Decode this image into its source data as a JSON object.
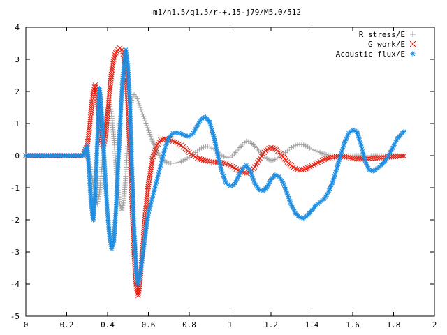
{
  "chart_data": {
    "type": "scatter",
    "title": "m1/n1.5/q1.5/r-+.15-j79/M5.0/512",
    "xlabel": "",
    "ylabel": "",
    "xlim": [
      0,
      2
    ],
    "ylim": [
      -5,
      4
    ],
    "xticks": [
      "0",
      "0.2",
      "0.4",
      "0.6",
      "0.8",
      "1",
      "1.2",
      "1.4",
      "1.6",
      "1.8",
      "2"
    ],
    "yticks": [
      "4",
      "3",
      "2",
      "1",
      "0",
      "-1",
      "-2",
      "-3",
      "-4",
      "-5"
    ],
    "legend_position": "top-right",
    "grid": false,
    "series": [
      {
        "name": "R stress/E",
        "marker": "plus",
        "color": "#a0a0a0",
        "x": [
          0.0,
          0.1,
          0.2,
          0.28,
          0.3,
          0.31,
          0.32,
          0.33,
          0.34,
          0.35,
          0.36,
          0.37,
          0.38,
          0.39,
          0.4,
          0.41,
          0.42,
          0.43,
          0.44,
          0.45,
          0.46,
          0.47,
          0.48,
          0.49,
          0.5,
          0.51,
          0.52,
          0.53,
          0.54,
          0.55,
          0.56,
          0.58,
          0.6,
          0.62,
          0.64,
          0.66,
          0.68,
          0.7,
          0.72,
          0.74,
          0.76,
          0.78,
          0.8,
          0.82,
          0.84,
          0.86,
          0.88,
          0.9,
          0.92,
          0.94,
          0.96,
          0.98,
          1.0,
          1.02,
          1.04,
          1.06,
          1.08,
          1.1,
          1.12,
          1.14,
          1.16,
          1.18,
          1.2,
          1.22,
          1.24,
          1.26,
          1.28,
          1.3,
          1.32,
          1.34,
          1.36,
          1.38,
          1.4,
          1.42,
          1.44,
          1.46,
          1.48,
          1.5,
          1.52,
          1.54,
          1.56,
          1.58,
          1.6,
          1.62,
          1.64,
          1.66,
          1.68,
          1.7,
          1.72,
          1.74,
          1.76,
          1.78,
          1.8,
          1.82,
          1.85
        ],
        "y": [
          0.0,
          0.0,
          0.0,
          0.0,
          -0.05,
          -0.2,
          -0.5,
          -0.9,
          -1.3,
          -1.5,
          -1.2,
          -0.5,
          0.2,
          0.9,
          1.4,
          1.6,
          1.3,
          0.6,
          -0.2,
          -1.0,
          -1.5,
          -1.7,
          -1.4,
          -0.5,
          0.5,
          1.3,
          1.8,
          1.9,
          1.85,
          1.7,
          1.5,
          1.15,
          0.8,
          0.45,
          0.15,
          -0.05,
          -0.18,
          -0.23,
          -0.24,
          -0.22,
          -0.18,
          -0.12,
          -0.05,
          0.05,
          0.15,
          0.24,
          0.28,
          0.27,
          0.2,
          0.1,
          0.0,
          -0.05,
          -0.05,
          0.05,
          0.2,
          0.35,
          0.45,
          0.42,
          0.3,
          0.15,
          0.0,
          -0.1,
          -0.15,
          -0.12,
          -0.05,
          0.05,
          0.15,
          0.25,
          0.32,
          0.35,
          0.33,
          0.28,
          0.2,
          0.15,
          0.1,
          0.05,
          0.02,
          0.0,
          -0.02,
          -0.03,
          -0.02,
          0.0,
          0.0,
          0.0,
          0.0,
          0.0,
          0.0,
          0.0,
          0.0,
          0.0,
          0.0,
          0.0,
          0.0,
          0.0,
          0.0
        ]
      },
      {
        "name": "G work/E",
        "marker": "cross",
        "color": "#e8190a",
        "x": [
          0.0,
          0.1,
          0.2,
          0.28,
          0.3,
          0.31,
          0.32,
          0.33,
          0.34,
          0.35,
          0.36,
          0.37,
          0.38,
          0.39,
          0.4,
          0.41,
          0.42,
          0.43,
          0.44,
          0.45,
          0.46,
          0.47,
          0.48,
          0.49,
          0.5,
          0.51,
          0.52,
          0.53,
          0.54,
          0.55,
          0.56,
          0.57,
          0.58,
          0.59,
          0.6,
          0.62,
          0.64,
          0.66,
          0.68,
          0.7,
          0.72,
          0.74,
          0.76,
          0.78,
          0.8,
          0.82,
          0.84,
          0.86,
          0.88,
          0.9,
          0.92,
          0.94,
          0.96,
          0.98,
          1.0,
          1.02,
          1.04,
          1.06,
          1.08,
          1.1,
          1.12,
          1.14,
          1.16,
          1.18,
          1.2,
          1.22,
          1.24,
          1.26,
          1.28,
          1.3,
          1.32,
          1.34,
          1.36,
          1.38,
          1.4,
          1.42,
          1.44,
          1.46,
          1.48,
          1.5,
          1.52,
          1.54,
          1.56,
          1.58,
          1.6,
          1.62,
          1.64,
          1.66,
          1.68,
          1.7,
          1.72,
          1.74,
          1.76,
          1.78,
          1.8,
          1.82,
          1.85
        ],
        "y": [
          0.0,
          0.0,
          0.0,
          0.0,
          0.3,
          0.8,
          1.4,
          2.0,
          2.2,
          1.8,
          1.0,
          0.4,
          0.3,
          0.6,
          1.3,
          2.0,
          2.6,
          3.0,
          3.2,
          3.3,
          3.35,
          3.3,
          3.1,
          2.5,
          1.5,
          0.2,
          -1.5,
          -3.0,
          -4.0,
          -4.35,
          -3.8,
          -3.0,
          -2.2,
          -1.5,
          -0.9,
          -0.1,
          0.3,
          0.48,
          0.52,
          0.5,
          0.45,
          0.4,
          0.32,
          0.22,
          0.1,
          0.0,
          -0.08,
          -0.12,
          -0.15,
          -0.18,
          -0.2,
          -0.2,
          -0.22,
          -0.25,
          -0.3,
          -0.38,
          -0.45,
          -0.5,
          -0.55,
          -0.5,
          -0.35,
          -0.15,
          0.05,
          0.2,
          0.25,
          0.22,
          0.1,
          -0.05,
          -0.2,
          -0.32,
          -0.4,
          -0.45,
          -0.43,
          -0.38,
          -0.32,
          -0.25,
          -0.18,
          -0.12,
          -0.08,
          -0.05,
          -0.03,
          -0.02,
          -0.03,
          -0.05,
          -0.08,
          -0.1,
          -0.1,
          -0.1,
          -0.09,
          -0.08,
          -0.07,
          -0.06,
          -0.05,
          -0.04,
          -0.03,
          -0.02,
          -0.01
        ]
      },
      {
        "name": "Acoustic flux/E",
        "marker": "star",
        "color": "#1e8de0",
        "x": [
          0.0,
          0.05,
          0.1,
          0.15,
          0.2,
          0.25,
          0.28,
          0.3,
          0.31,
          0.32,
          0.33,
          0.34,
          0.35,
          0.36,
          0.37,
          0.38,
          0.39,
          0.4,
          0.41,
          0.42,
          0.43,
          0.44,
          0.45,
          0.46,
          0.47,
          0.48,
          0.49,
          0.5,
          0.51,
          0.52,
          0.53,
          0.54,
          0.55,
          0.56,
          0.57,
          0.58,
          0.59,
          0.6,
          0.62,
          0.64,
          0.66,
          0.68,
          0.7,
          0.72,
          0.74,
          0.76,
          0.78,
          0.8,
          0.82,
          0.84,
          0.86,
          0.88,
          0.9,
          0.92,
          0.94,
          0.96,
          0.98,
          1.0,
          1.02,
          1.04,
          1.06,
          1.08,
          1.1,
          1.12,
          1.14,
          1.16,
          1.18,
          1.2,
          1.22,
          1.24,
          1.26,
          1.28,
          1.3,
          1.32,
          1.34,
          1.36,
          1.38,
          1.4,
          1.42,
          1.44,
          1.46,
          1.48,
          1.5,
          1.52,
          1.54,
          1.56,
          1.58,
          1.6,
          1.62,
          1.64,
          1.66,
          1.68,
          1.7,
          1.72,
          1.74,
          1.76,
          1.78,
          1.8,
          1.82,
          1.85
        ],
        "y": [
          0.0,
          0.0,
          0.0,
          0.0,
          0.0,
          0.0,
          0.0,
          0.3,
          -0.5,
          -1.5,
          -2.0,
          -1.2,
          0.5,
          2.1,
          1.5,
          0.3,
          -0.9,
          -1.8,
          -2.5,
          -2.9,
          -2.7,
          -1.8,
          -0.5,
          0.8,
          2.0,
          2.8,
          3.3,
          2.8,
          1.5,
          -0.5,
          -2.3,
          -3.6,
          -4.0,
          -3.7,
          -3.2,
          -2.7,
          -2.2,
          -1.8,
          -1.3,
          -0.8,
          -0.3,
          0.2,
          0.55,
          0.7,
          0.72,
          0.68,
          0.62,
          0.6,
          0.7,
          0.95,
          1.15,
          1.2,
          1.05,
          0.6,
          0.0,
          -0.5,
          -0.85,
          -0.95,
          -0.9,
          -0.65,
          -0.4,
          -0.3,
          -0.5,
          -0.85,
          -1.05,
          -1.1,
          -0.98,
          -0.75,
          -0.6,
          -0.65,
          -0.85,
          -1.2,
          -1.55,
          -1.8,
          -1.92,
          -1.95,
          -1.85,
          -1.7,
          -1.55,
          -1.45,
          -1.35,
          -1.15,
          -0.85,
          -0.45,
          0.0,
          0.4,
          0.7,
          0.8,
          0.75,
          0.35,
          -0.15,
          -0.45,
          -0.48,
          -0.4,
          -0.3,
          -0.15,
          0.05,
          0.3,
          0.55,
          0.75
        ]
      }
    ]
  }
}
